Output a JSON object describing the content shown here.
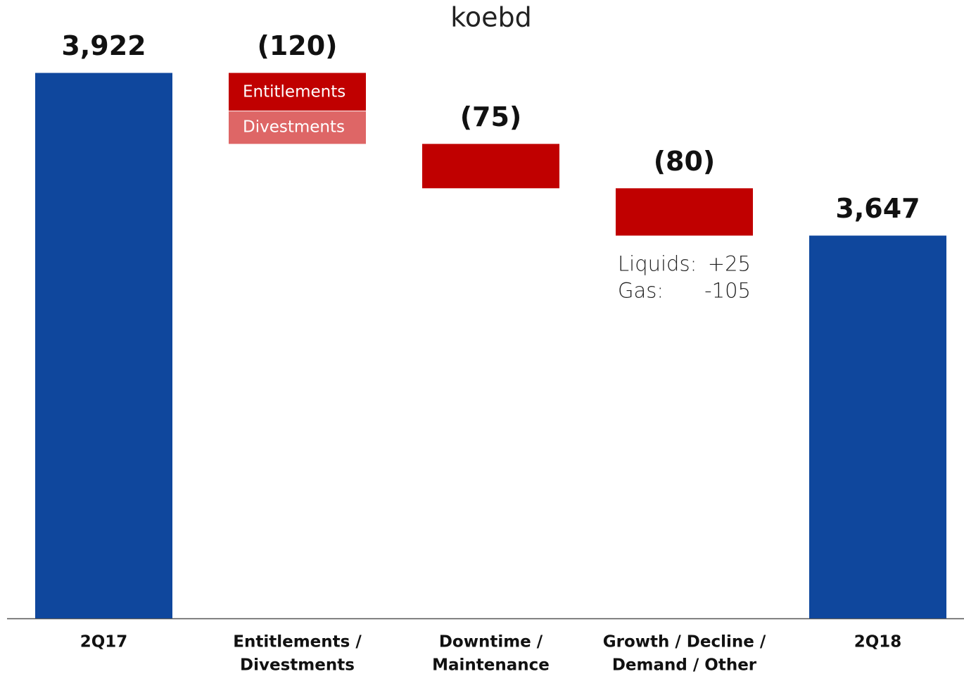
{
  "chart_data": {
    "type": "waterfall",
    "title": "koebd",
    "categories": [
      [
        "2Q17"
      ],
      [
        "Entitlements /",
        "Divestments"
      ],
      [
        "Downtime /",
        "Maintenance"
      ],
      [
        "Growth / Decline /",
        "Demand / Other"
      ],
      [
        "2Q18"
      ]
    ],
    "measure": [
      "absolute",
      "relative",
      "relative",
      "relative",
      "absolute"
    ],
    "values": [
      3922,
      -120,
      -75,
      -80,
      3647
    ],
    "value_labels": [
      "3,922",
      "(120)",
      "(75)",
      "(80)",
      "3,647"
    ],
    "colors": [
      "#0f479d",
      "#c00000",
      "#c00000",
      "#c00000",
      "#0f479d"
    ],
    "segments": {
      "1": [
        {
          "name": "Entitlements",
          "value": -65,
          "color": "#c00000"
        },
        {
          "name": "Divestments",
          "value": -55,
          "color": "#de6666"
        }
      ]
    },
    "annotation": {
      "category": 3,
      "lines": [
        [
          "Liquids:",
          "+25"
        ],
        [
          "Gas:",
          "-105"
        ]
      ]
    },
    "ylim": [
      3000,
      4000
    ]
  }
}
